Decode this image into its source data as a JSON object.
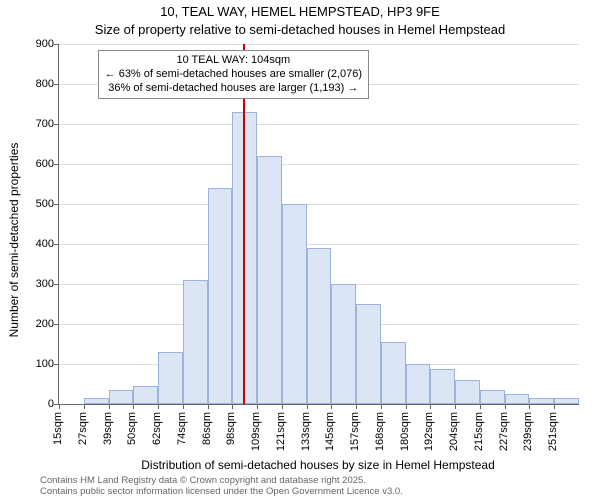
{
  "title_line1": "10, TEAL WAY, HEMEL HEMPSTEAD, HP3 9FE",
  "title_line2": "Size of property relative to semi-detached houses in Hemel Hempstead",
  "ylabel": "Number of semi-detached properties",
  "xlabel": "Distribution of semi-detached houses by size in Hemel Hempstead",
  "footer_line1": "Contains HM Land Registry data © Crown copyright and database right 2025.",
  "footer_line2": "Contains public sector information licensed under the Open Government Licence v3.0.",
  "chart": {
    "type": "histogram",
    "background_color": "#ffffff",
    "grid_color": "#dddddd",
    "axis_color": "#666666",
    "bar_fill": "#dbe5f4",
    "bar_stroke": "#9cb4dd",
    "marker_color": "#cc0000",
    "ylim": [
      0,
      900
    ],
    "yticks": [
      0,
      100,
      200,
      300,
      400,
      500,
      600,
      700,
      800,
      900
    ],
    "x_start": 15,
    "x_step": 12,
    "x_unit": "sqm",
    "bin_count": 21,
    "values": [
      0,
      15,
      35,
      45,
      130,
      310,
      540,
      730,
      620,
      500,
      390,
      300,
      250,
      155,
      100,
      88,
      60,
      35,
      25,
      15,
      15
    ],
    "xtick_labels": [
      "15sqm",
      "27sqm",
      "39sqm",
      "50sqm",
      "62sqm",
      "74sqm",
      "86sqm",
      "98sqm",
      "109sqm",
      "121sqm",
      "133sqm",
      "145sqm",
      "157sqm",
      "168sqm",
      "180sqm",
      "192sqm",
      "204sqm",
      "215sqm",
      "227sqm",
      "239sqm",
      "251sqm"
    ],
    "marker_x_value": 104,
    "annotation": {
      "line1": "10 TEAL WAY: 104sqm",
      "line2": "← 63% of semi-detached houses are smaller (2,076)",
      "line3": "36% of semi-detached houses are larger (1,193) →"
    },
    "title_fontsize": 13,
    "label_fontsize": 12,
    "tick_fontsize": 11
  }
}
